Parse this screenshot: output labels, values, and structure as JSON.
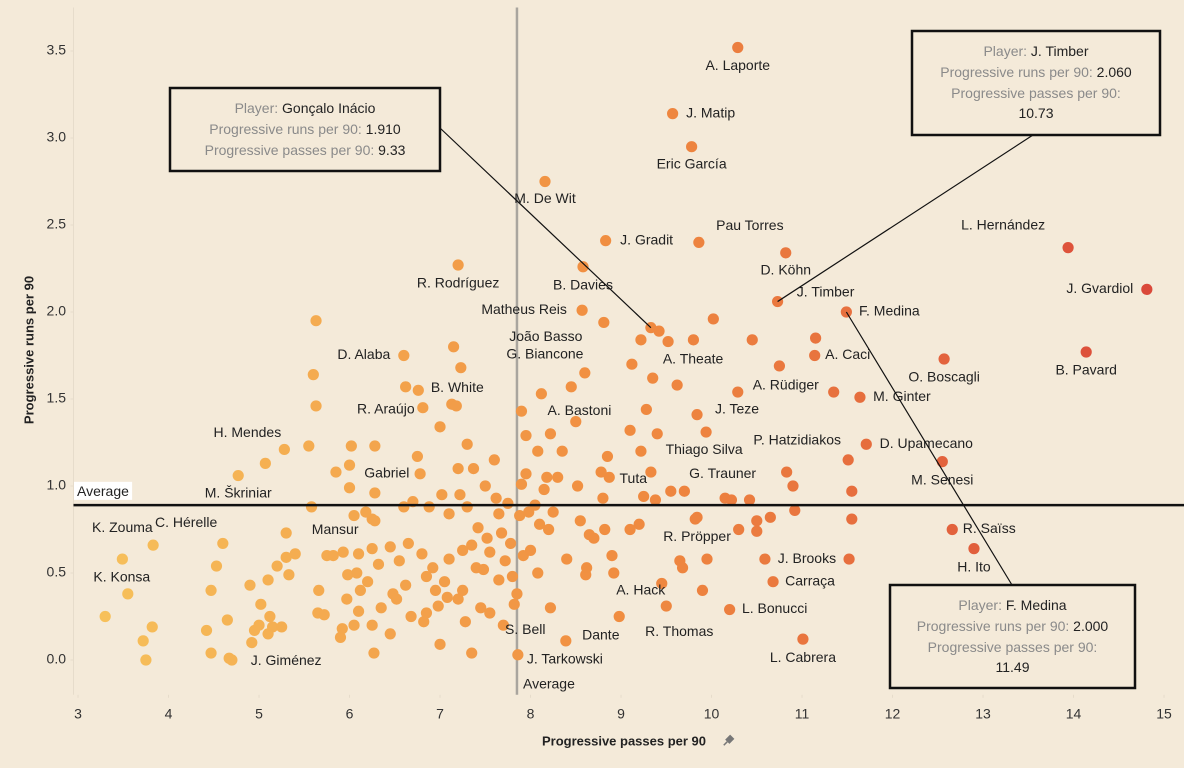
{
  "chart_data": {
    "type": "scatter",
    "x_label": "Progressive passes per 90",
    "y_label": "Progressive runs per 90",
    "xlim": [
      2.95,
      15.15
    ],
    "ylim": [
      -0.2,
      3.75
    ],
    "xticks": [
      3,
      4,
      5,
      6,
      7,
      8,
      9,
      10,
      11,
      12,
      13,
      14,
      15
    ],
    "yticks": [
      {
        "value": 0,
        "label": "0.0"
      },
      0.5,
      {
        "value": 1,
        "label": "1.0"
      },
      1.5,
      {
        "value": 2,
        "label": "2.0"
      },
      2.5,
      {
        "value": 3,
        "label": "3.0"
      },
      3.5
    ],
    "color_scale": [
      "#f7c35c",
      "#f08c40",
      "#d9453a"
    ],
    "x_average": {
      "value": 7.85,
      "label": "Average"
    },
    "y_average": {
      "value": 0.89,
      "label": "Average"
    },
    "series": [
      {
        "labels": [
          "A. Laporte",
          "J. Matip",
          "Eric García",
          "M. De Wit",
          "J. Gradit",
          "Pau Torres",
          "L. Hernández",
          "D. Köhn",
          "R. Rodríguez",
          "B. Davies",
          "J. Gvardiol",
          "J. Timber",
          "Matheus Reis",
          "F. Medina",
          "João Basso",
          null,
          "G. Biancone",
          "A. Theate",
          "D. Alaba",
          "B. Pavard",
          "A. Caci",
          "O. Boscagli",
          "B. White",
          "A. Rüdiger",
          "M. Ginter",
          "R. Araújo",
          "A. Bastoni",
          "J. Teze",
          "H. Mendes",
          "Thiago Silva",
          "P. Hatzidiakos",
          "D. Upamecano",
          "Gabriel",
          "Tuta",
          "G. Trauner",
          "M. Senesi",
          "M. Škriniar",
          "K. Zouma",
          "C. Hérelle",
          "Mansur",
          "R. Pröpper",
          "R. Saïss",
          "J. Brooks",
          "H. Ito",
          "K. Konsa",
          "Carraça",
          "A. Hack",
          "L. Bonucci",
          "S. Bell",
          "Dante",
          "R. Thomas",
          "L. Cabrera",
          "J. Giménez",
          "J. Tarkowski"
        ],
        "x": [
          10.29,
          9.57,
          9.78,
          8.16,
          8.83,
          9.86,
          13.94,
          10.82,
          7.2,
          8.58,
          14.81,
          10.73,
          8.57,
          11.49,
          8.81,
          9.33,
          9.22,
          9.52,
          6.6,
          14.14,
          11.14,
          12.57,
          6.76,
          10.29,
          11.64,
          6.81,
          7.9,
          9.84,
          5.07,
          9.94,
          11.51,
          11.71,
          6.28,
          8.87,
          10.83,
          12.55,
          4.77,
          3.49,
          3.83,
          6.25,
          9.84,
          12.66,
          10.59,
          12.9,
          3.55,
          10.68,
          8.61,
          10.2,
          7.82,
          8.39,
          9.5,
          11.01,
          4.67,
          7.86
        ],
        "values": [
          3.52,
          3.14,
          2.95,
          2.75,
          2.41,
          2.4,
          2.37,
          2.34,
          2.27,
          2.26,
          2.13,
          2.06,
          2.01,
          2.0,
          1.94,
          1.91,
          1.84,
          1.83,
          1.75,
          1.77,
          1.75,
          1.73,
          1.55,
          1.54,
          1.51,
          1.45,
          1.43,
          1.41,
          1.13,
          1.31,
          1.15,
          1.24,
          1.23,
          1.05,
          1.08,
          1.14,
          1.06,
          0.58,
          0.66,
          0.81,
          0.82,
          0.75,
          0.58,
          0.64,
          0.38,
          0.45,
          0.49,
          0.29,
          0.32,
          0.11,
          0.31,
          0.12,
          0.01,
          0.03
        ]
      },
      {
        "x": [
          3.3,
          3.72,
          3.75,
          3.82,
          4.42,
          4.47,
          4.47,
          4.53,
          4.6,
          4.65,
          4.7,
          4.9,
          4.92,
          4.95,
          5.0,
          5.02,
          5.1,
          5.1,
          5.12,
          5.15,
          5.2,
          5.25,
          5.3,
          5.3,
          5.28,
          5.33,
          5.4,
          5.55,
          5.58,
          5.6,
          5.63,
          5.63,
          5.65,
          5.66,
          5.72,
          5.75,
          5.82,
          5.85,
          5.9,
          5.92,
          5.93,
          5.97,
          5.98,
          6.0,
          6.02,
          6.0,
          6.05,
          6.05,
          6.08,
          6.1,
          6.1,
          6.12,
          6.18,
          6.2,
          6.25,
          6.25,
          6.27,
          6.28,
          6.28,
          6.32,
          6.35,
          6.45,
          6.45,
          6.48,
          6.52,
          6.55,
          6.6,
          6.62,
          6.62,
          6.65,
          6.68,
          6.7,
          6.75,
          6.78,
          6.8,
          6.82,
          6.85,
          6.85,
          6.88,
          6.92,
          6.95,
          6.98,
          7.0,
          7.0,
          7.02,
          7.05,
          7.08,
          7.1,
          7.1,
          7.13,
          7.15,
          7.18,
          7.2,
          7.2,
          7.22,
          7.23,
          7.25,
          7.25,
          7.28,
          7.3,
          7.3,
          7.35,
          7.35,
          7.37,
          7.4,
          7.42,
          7.45,
          7.48,
          7.5,
          7.52,
          7.55,
          7.55,
          7.6,
          7.62,
          7.65,
          7.65,
          7.68,
          7.7,
          7.72,
          7.75,
          7.78,
          7.8,
          7.85,
          7.88,
          7.9,
          7.92,
          7.95,
          7.95,
          7.98,
          8.0,
          8.05,
          8.08,
          8.08,
          8.1,
          8.12,
          8.15,
          8.18,
          8.2,
          8.22,
          8.22,
          8.25,
          8.3,
          8.35,
          8.4,
          8.45,
          8.5,
          8.52,
          8.55,
          8.6,
          8.62,
          8.65,
          8.7,
          8.78,
          8.8,
          8.82,
          8.85,
          8.9,
          8.92,
          8.98,
          9.1,
          9.1,
          9.12,
          9.2,
          9.22,
          9.25,
          9.28,
          9.33,
          9.35,
          9.38,
          9.4,
          9.42,
          9.45,
          9.55,
          9.62,
          9.65,
          9.68,
          9.7,
          9.8,
          9.82,
          9.9,
          9.95,
          10.02,
          10.15,
          10.22,
          10.3,
          10.42,
          10.45,
          10.5,
          10.5,
          10.65,
          10.75,
          10.9,
          10.92,
          11.15,
          11.35,
          11.55,
          11.55,
          11.52
        ],
        "values": [
          0.25,
          0.11,
          0.0,
          0.19,
          0.17,
          0.4,
          0.04,
          0.54,
          0.67,
          0.23,
          0.0,
          0.43,
          0.1,
          0.17,
          0.2,
          0.32,
          0.15,
          0.46,
          0.25,
          0.19,
          0.54,
          0.19,
          0.59,
          0.73,
          1.21,
          0.49,
          0.61,
          1.23,
          0.88,
          1.64,
          1.46,
          1.95,
          0.27,
          0.4,
          0.26,
          0.6,
          0.6,
          1.08,
          0.13,
          0.18,
          0.62,
          0.35,
          0.49,
          1.12,
          1.23,
          0.99,
          0.2,
          0.83,
          0.5,
          0.28,
          0.61,
          0.4,
          0.85,
          0.45,
          0.64,
          0.2,
          0.04,
          0.96,
          0.8,
          0.55,
          0.3,
          0.15,
          0.65,
          0.38,
          0.35,
          0.57,
          0.88,
          0.43,
          1.57,
          0.67,
          0.25,
          0.91,
          1.17,
          1.07,
          0.61,
          0.22,
          0.27,
          0.48,
          0.88,
          0.53,
          0.4,
          0.31,
          1.34,
          0.09,
          0.95,
          0.45,
          0.36,
          0.58,
          0.84,
          1.47,
          1.8,
          1.46,
          1.1,
          0.35,
          0.95,
          1.68,
          0.63,
          0.4,
          0.22,
          1.24,
          0.88,
          0.66,
          0.04,
          1.1,
          0.53,
          0.76,
          0.3,
          0.52,
          1.0,
          0.7,
          0.62,
          0.27,
          1.15,
          0.93,
          0.84,
          0.46,
          0.73,
          0.2,
          0.57,
          0.9,
          0.67,
          0.48,
          0.38,
          0.83,
          1.01,
          0.6,
          1.29,
          1.07,
          0.85,
          0.63,
          0.89,
          1.2,
          0.5,
          0.78,
          1.53,
          0.98,
          1.05,
          0.75,
          1.3,
          0.3,
          0.85,
          1.05,
          1.2,
          0.58,
          1.57,
          1.37,
          1.0,
          0.8,
          1.65,
          0.53,
          0.72,
          0.7,
          1.08,
          0.93,
          0.75,
          1.17,
          0.6,
          0.5,
          0.25,
          0.75,
          1.32,
          1.7,
          0.78,
          1.2,
          0.94,
          1.44,
          1.08,
          1.62,
          0.92,
          1.3,
          1.89,
          0.44,
          0.97,
          1.58,
          0.57,
          0.53,
          0.97,
          1.84,
          0.81,
          0.4,
          0.58,
          1.96,
          0.93,
          0.92,
          0.75,
          0.92,
          1.84,
          0.8,
          0.74,
          0.82,
          1.69,
          1.0,
          0.86,
          1.85,
          1.54,
          0.97,
          0.81,
          0.58
        ]
      }
    ],
    "annotation_fields": [
      "Player:",
      "Progressive runs per 90:",
      "Progressive passes per 90:"
    ],
    "annotations": [
      {
        "player": "Gonçalo Inácio",
        "runs": 1.91,
        "runs_label": "1.910",
        "passes": 9.33
      },
      {
        "player": "J. Timber",
        "runs": 2.06,
        "runs_label": "2.060",
        "passes": 10.73
      },
      {
        "player": "F. Medina",
        "runs": 2.0,
        "runs_label": "2.000",
        "passes": 11.49
      }
    ]
  }
}
